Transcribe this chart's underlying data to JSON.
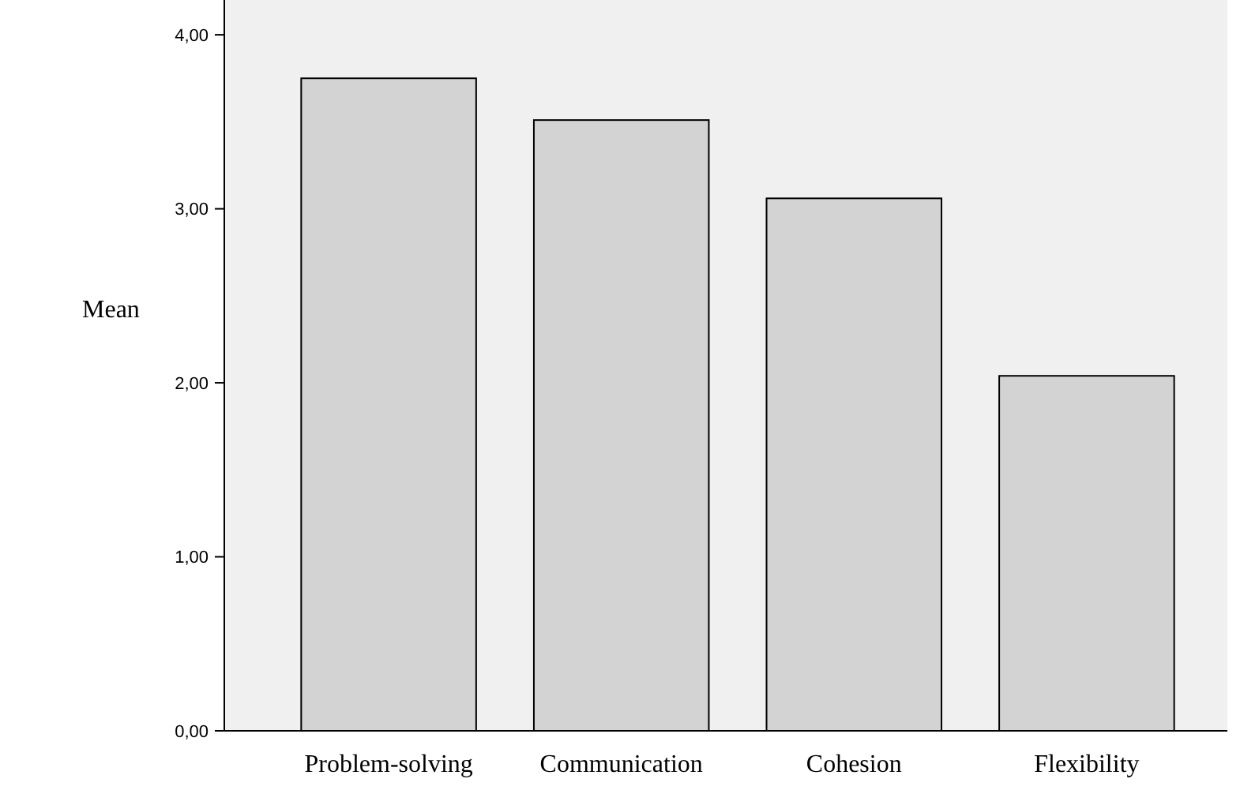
{
  "chart_data": {
    "type": "bar",
    "ylabel": "Mean",
    "categories": [
      "Problem-solving",
      "Communication",
      "Cohesion",
      "Flexibility"
    ],
    "values": [
      3.75,
      3.51,
      3.06,
      2.04
    ],
    "color": "#d3d3d3",
    "ylim": [
      0,
      4.2
    ],
    "yticks": [
      {
        "value": 0,
        "label": "0,00"
      },
      {
        "value": 1,
        "label": "1,00"
      },
      {
        "value": 2,
        "label": "2,00"
      },
      {
        "value": 3,
        "label": "3,00"
      },
      {
        "value": 4,
        "label": "4,00"
      }
    ],
    "grid": false
  }
}
